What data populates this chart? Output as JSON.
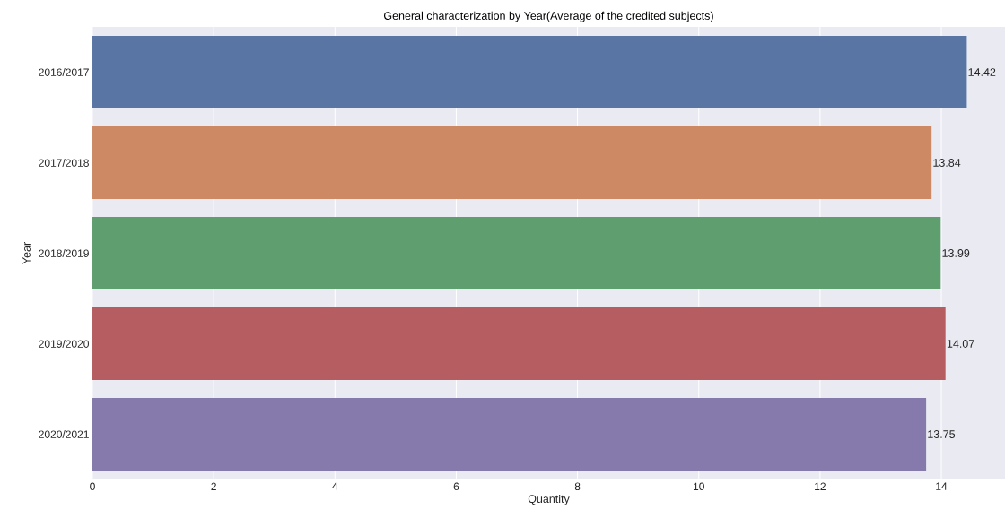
{
  "chart_data": {
    "type": "bar",
    "orientation": "horizontal",
    "title": "General characterization by Year(Average of the credited subjects)",
    "xlabel": "Quantity",
    "ylabel": "Year",
    "categories": [
      "2016/2017",
      "2017/2018",
      "2018/2019",
      "2019/2020",
      "2020/2021"
    ],
    "values": [
      14.42,
      13.84,
      13.99,
      14.07,
      13.75
    ],
    "colors": [
      "#5975a4",
      "#cc8963",
      "#5f9e6e",
      "#b55d60",
      "#857aab"
    ],
    "xlim": [
      0,
      15.05
    ],
    "xticks": [
      0,
      2,
      4,
      6,
      8,
      10,
      12,
      14
    ],
    "grid": "x",
    "data_labels": true
  }
}
